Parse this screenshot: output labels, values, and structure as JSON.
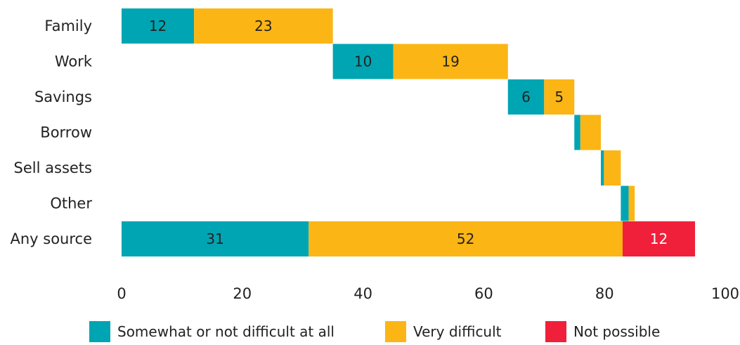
{
  "chart_data": {
    "type": "bar",
    "orientation": "horizontal",
    "layout": "waterfall",
    "title": "",
    "xlabel": "",
    "ylabel": "",
    "xlim": [
      0,
      100
    ],
    "x_ticks": [
      0,
      20,
      40,
      60,
      80,
      100
    ],
    "grid": false,
    "legend_position": "bottom",
    "categories": [
      "Family",
      "Work",
      "Savings",
      "Borrow",
      "Sell assets",
      "Other",
      "Any source"
    ],
    "series": [
      {
        "name": "Somewhat or not difficult at all",
        "color": "#00a5b3",
        "values": [
          12,
          10,
          6,
          1,
          0.5,
          1.3,
          31
        ],
        "labels": [
          "12",
          "10",
          "6",
          "",
          "",
          "",
          "31"
        ],
        "label_color": "#222222"
      },
      {
        "name": "Very difficult",
        "color": "#fbb515",
        "values": [
          23,
          19,
          5,
          3.4,
          2.8,
          1,
          52
        ],
        "labels": [
          "23",
          "19",
          "5",
          "",
          "",
          "",
          "52"
        ],
        "label_color": "#222222"
      },
      {
        "name": "Not possible",
        "color": "#f0203a",
        "values": [
          0,
          0,
          0,
          0,
          0,
          0,
          12
        ],
        "labels": [
          "",
          "",
          "",
          "",
          "",
          "",
          "12"
        ],
        "label_color": "#ffffff"
      }
    ],
    "starts": [
      0,
      35,
      64,
      75,
      79.4,
      82.7,
      0
    ]
  }
}
